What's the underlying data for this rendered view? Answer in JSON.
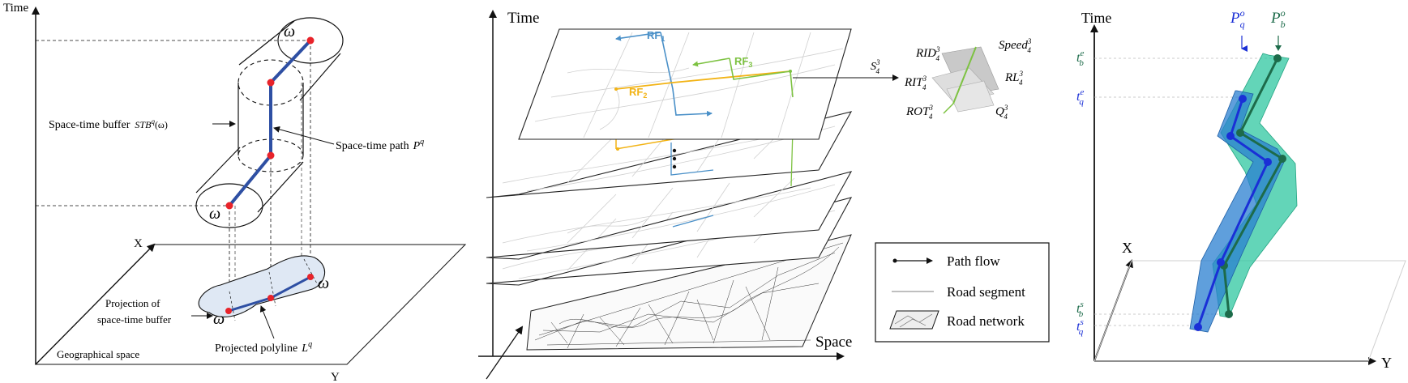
{
  "panel1": {
    "axis_time": "Time",
    "axis_x": "X",
    "axis_y": "Y",
    "omega": "ω",
    "stb_label": "Space-time buffer",
    "stb_math": "STB",
    "stb_sup": "q",
    "stb_arg": "(ω)",
    "path_label": "Space-time path",
    "path_math": "P",
    "path_sup": "q",
    "proj_buffer_l1": "Projection of",
    "proj_buffer_l2": "space-time buffer",
    "proj_poly_label": "Projected polyline",
    "proj_poly_math": "L",
    "proj_poly_sup": "q",
    "geo_space": "Geographical space"
  },
  "panel2": {
    "axis_time": "Time",
    "axis_space": "Space",
    "rf1": "RF",
    "rf1_sub": "1",
    "rf2": "RF",
    "rf2_sub": "2",
    "rf3": "RF",
    "rf3_sub": "3",
    "s_label": "S",
    "s_sup": "3",
    "s_sub": "4",
    "rid": "RID",
    "speed": "Speed",
    "rit": "RIT",
    "rl": "RL",
    "rot": "ROT",
    "q": "Q",
    "sup3": "3",
    "sub4": "4",
    "legend": {
      "path_flow": "Path flow",
      "road_segment": "Road segment",
      "road_network": "Road network"
    }
  },
  "panel3": {
    "axis_time": "Time",
    "axis_x": "X",
    "axis_y": "Y",
    "pq": "P",
    "pq_sub": "q",
    "pq_sup": "o",
    "pb": "P",
    "pb_sub": "b",
    "pb_sup": "o",
    "t": "t",
    "t_be_sub": "b",
    "t_be_sup": "e",
    "t_qe_sub": "q",
    "t_qe_sup": "e",
    "t_bs_sub": "b",
    "t_bs_sup": "s",
    "t_qs_sub": "q",
    "t_qs_sup": "s"
  },
  "colors": {
    "path_blue": "#2e4fa3",
    "red_node": "#e8232a",
    "rf_blue": "#4a90c8",
    "rf_yellow": "#f2b315",
    "rf_green": "#7dc242",
    "q_blue": "#1a2fd6",
    "b_green": "#1d6b4a",
    "buf_blue": "#2a7fd0",
    "buf_green": "#2fc7a0"
  }
}
